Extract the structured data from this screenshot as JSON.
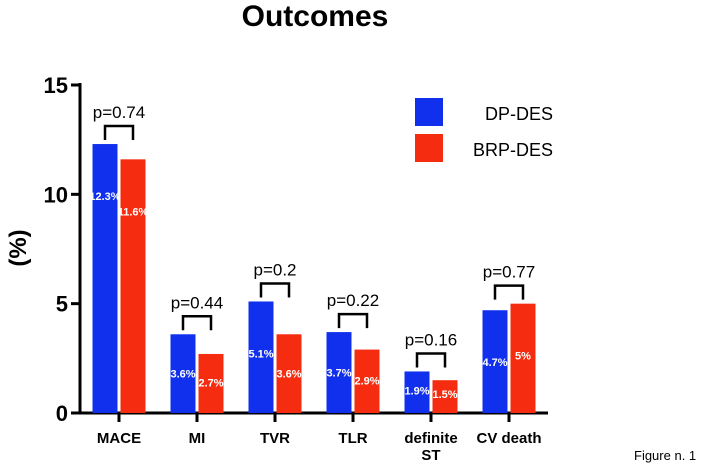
{
  "chart_data": {
    "type": "bar",
    "title": "Outcomes",
    "xlabel": "",
    "ylabel": "(%)",
    "ylim": [
      0,
      15
    ],
    "yticks": [
      "0",
      "5",
      "10",
      "15"
    ],
    "grid": false,
    "legend_position": "top-right",
    "categories": [
      {
        "lines": [
          "MACE"
        ]
      },
      {
        "lines": [
          "MI"
        ]
      },
      {
        "lines": [
          "TVR"
        ]
      },
      {
        "lines": [
          "TLR"
        ]
      },
      {
        "lines": [
          "definite",
          "ST"
        ]
      },
      {
        "lines": [
          "CV death"
        ]
      }
    ],
    "series": [
      {
        "name": "DP-DES",
        "color": "#1030ee",
        "values": [
          12.3,
          3.6,
          5.1,
          3.7,
          1.9,
          4.7
        ],
        "labels": [
          "12.3%",
          "3.6%",
          "5.1%",
          "3.7%",
          "1.9%",
          "4.7%"
        ]
      },
      {
        "name": "BRP-DES",
        "color": "#f52c0f",
        "values": [
          11.6,
          2.7,
          3.6,
          2.9,
          1.5,
          5.0
        ],
        "labels": [
          "11.6%",
          "2.7%",
          "3.6%",
          "2.9%",
          "1.5%",
          "5%"
        ]
      }
    ],
    "p_values": [
      "p=0.74",
      "p=0.44",
      "p=0.2",
      "p=0.22",
      "p=0.16",
      "p=0.77"
    ]
  },
  "caption": "Figure n. 1"
}
